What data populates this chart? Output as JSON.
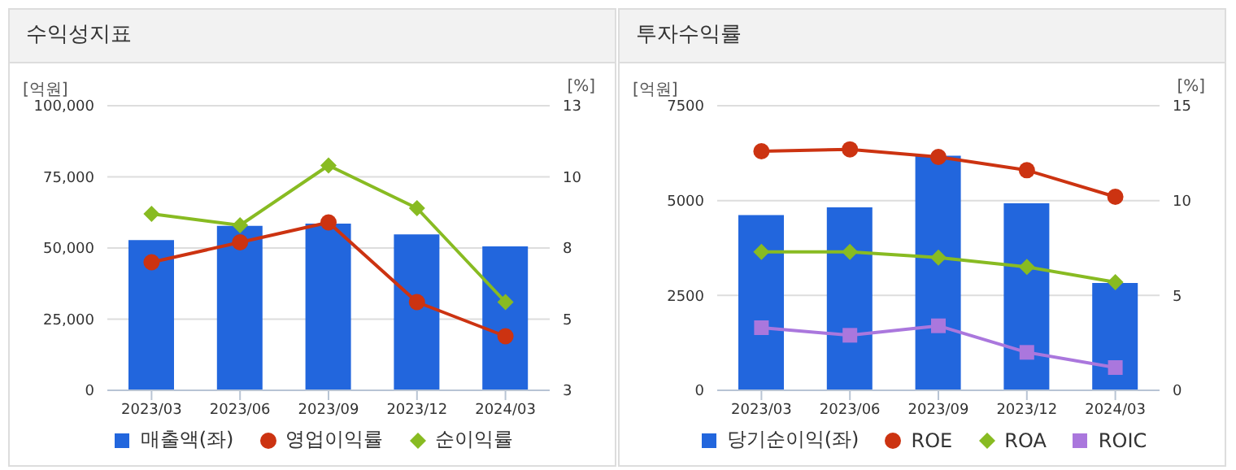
{
  "chart_data": [
    {
      "type": "bar",
      "title": "수익성지표",
      "ylabel": "[억원]",
      "y2label": "[%]",
      "categories": [
        "2023/03",
        "2023/06",
        "2023/09",
        "2023/12",
        "2024/03"
      ],
      "series": [
        {
          "name": "매출액(좌)",
          "color": "#2266dd",
          "values": [
            52800,
            57800,
            58600,
            54800,
            50600
          ]
        },
        {
          "name": "영업이익률",
          "type": "line",
          "axis": "y2",
          "marker": "circle",
          "color": "#cc3311",
          "values": [
            7.5,
            8.2,
            8.9,
            6.1,
            4.9
          ]
        },
        {
          "name": "순이익률",
          "type": "line",
          "axis": "y2",
          "marker": "diamond",
          "color": "#88bb22",
          "values": [
            9.2,
            8.8,
            10.9,
            9.4,
            6.1
          ]
        }
      ],
      "ylim": [
        0,
        100000
      ],
      "yticks": [
        0,
        {
          "value": 25000,
          "label": "25,000"
        },
        {
          "value": 50000,
          "label": "50,000"
        },
        {
          "value": 75000,
          "label": "75,000"
        },
        {
          "value": 100000,
          "label": "100,000"
        }
      ],
      "y2lim": [
        3,
        13
      ],
      "y2ticks": [
        3,
        {
          "value": 5.5,
          "label": "5"
        },
        8,
        {
          "value": 10.5,
          "label": "10"
        },
        13
      ],
      "grid": "y",
      "legend": "bottom"
    },
    {
      "type": "bar",
      "title": "투자수익률",
      "ylabel": "[억원]",
      "y2label": "[%]",
      "categories": [
        "2023/03",
        "2023/06",
        "2023/09",
        "2023/12",
        "2024/03"
      ],
      "series": [
        {
          "name": "당기순이익(좌)",
          "color": "#2266dd",
          "values": [
            4620,
            4820,
            6180,
            4930,
            2830
          ]
        },
        {
          "name": "ROE",
          "type": "line",
          "axis": "y2",
          "marker": "circle",
          "color": "#cc3311",
          "values": [
            12.6,
            12.7,
            12.3,
            11.6,
            10.2
          ]
        },
        {
          "name": "ROA",
          "type": "line",
          "axis": "y2",
          "marker": "diamond",
          "color": "#88bb22",
          "values": [
            7.3,
            7.3,
            7.0,
            6.5,
            5.7
          ]
        },
        {
          "name": "ROIC",
          "type": "line",
          "axis": "y2",
          "marker": "square",
          "color": "#aa77dd",
          "values": [
            3.3,
            2.9,
            3.4,
            2.0,
            1.2
          ]
        }
      ],
      "ylim": [
        0,
        7500
      ],
      "yticks": [
        0,
        2500,
        5000,
        7500
      ],
      "y2lim": [
        0,
        15
      ],
      "y2ticks": [
        0,
        5,
        10,
        15
      ],
      "grid": "y",
      "legend": "bottom"
    }
  ]
}
